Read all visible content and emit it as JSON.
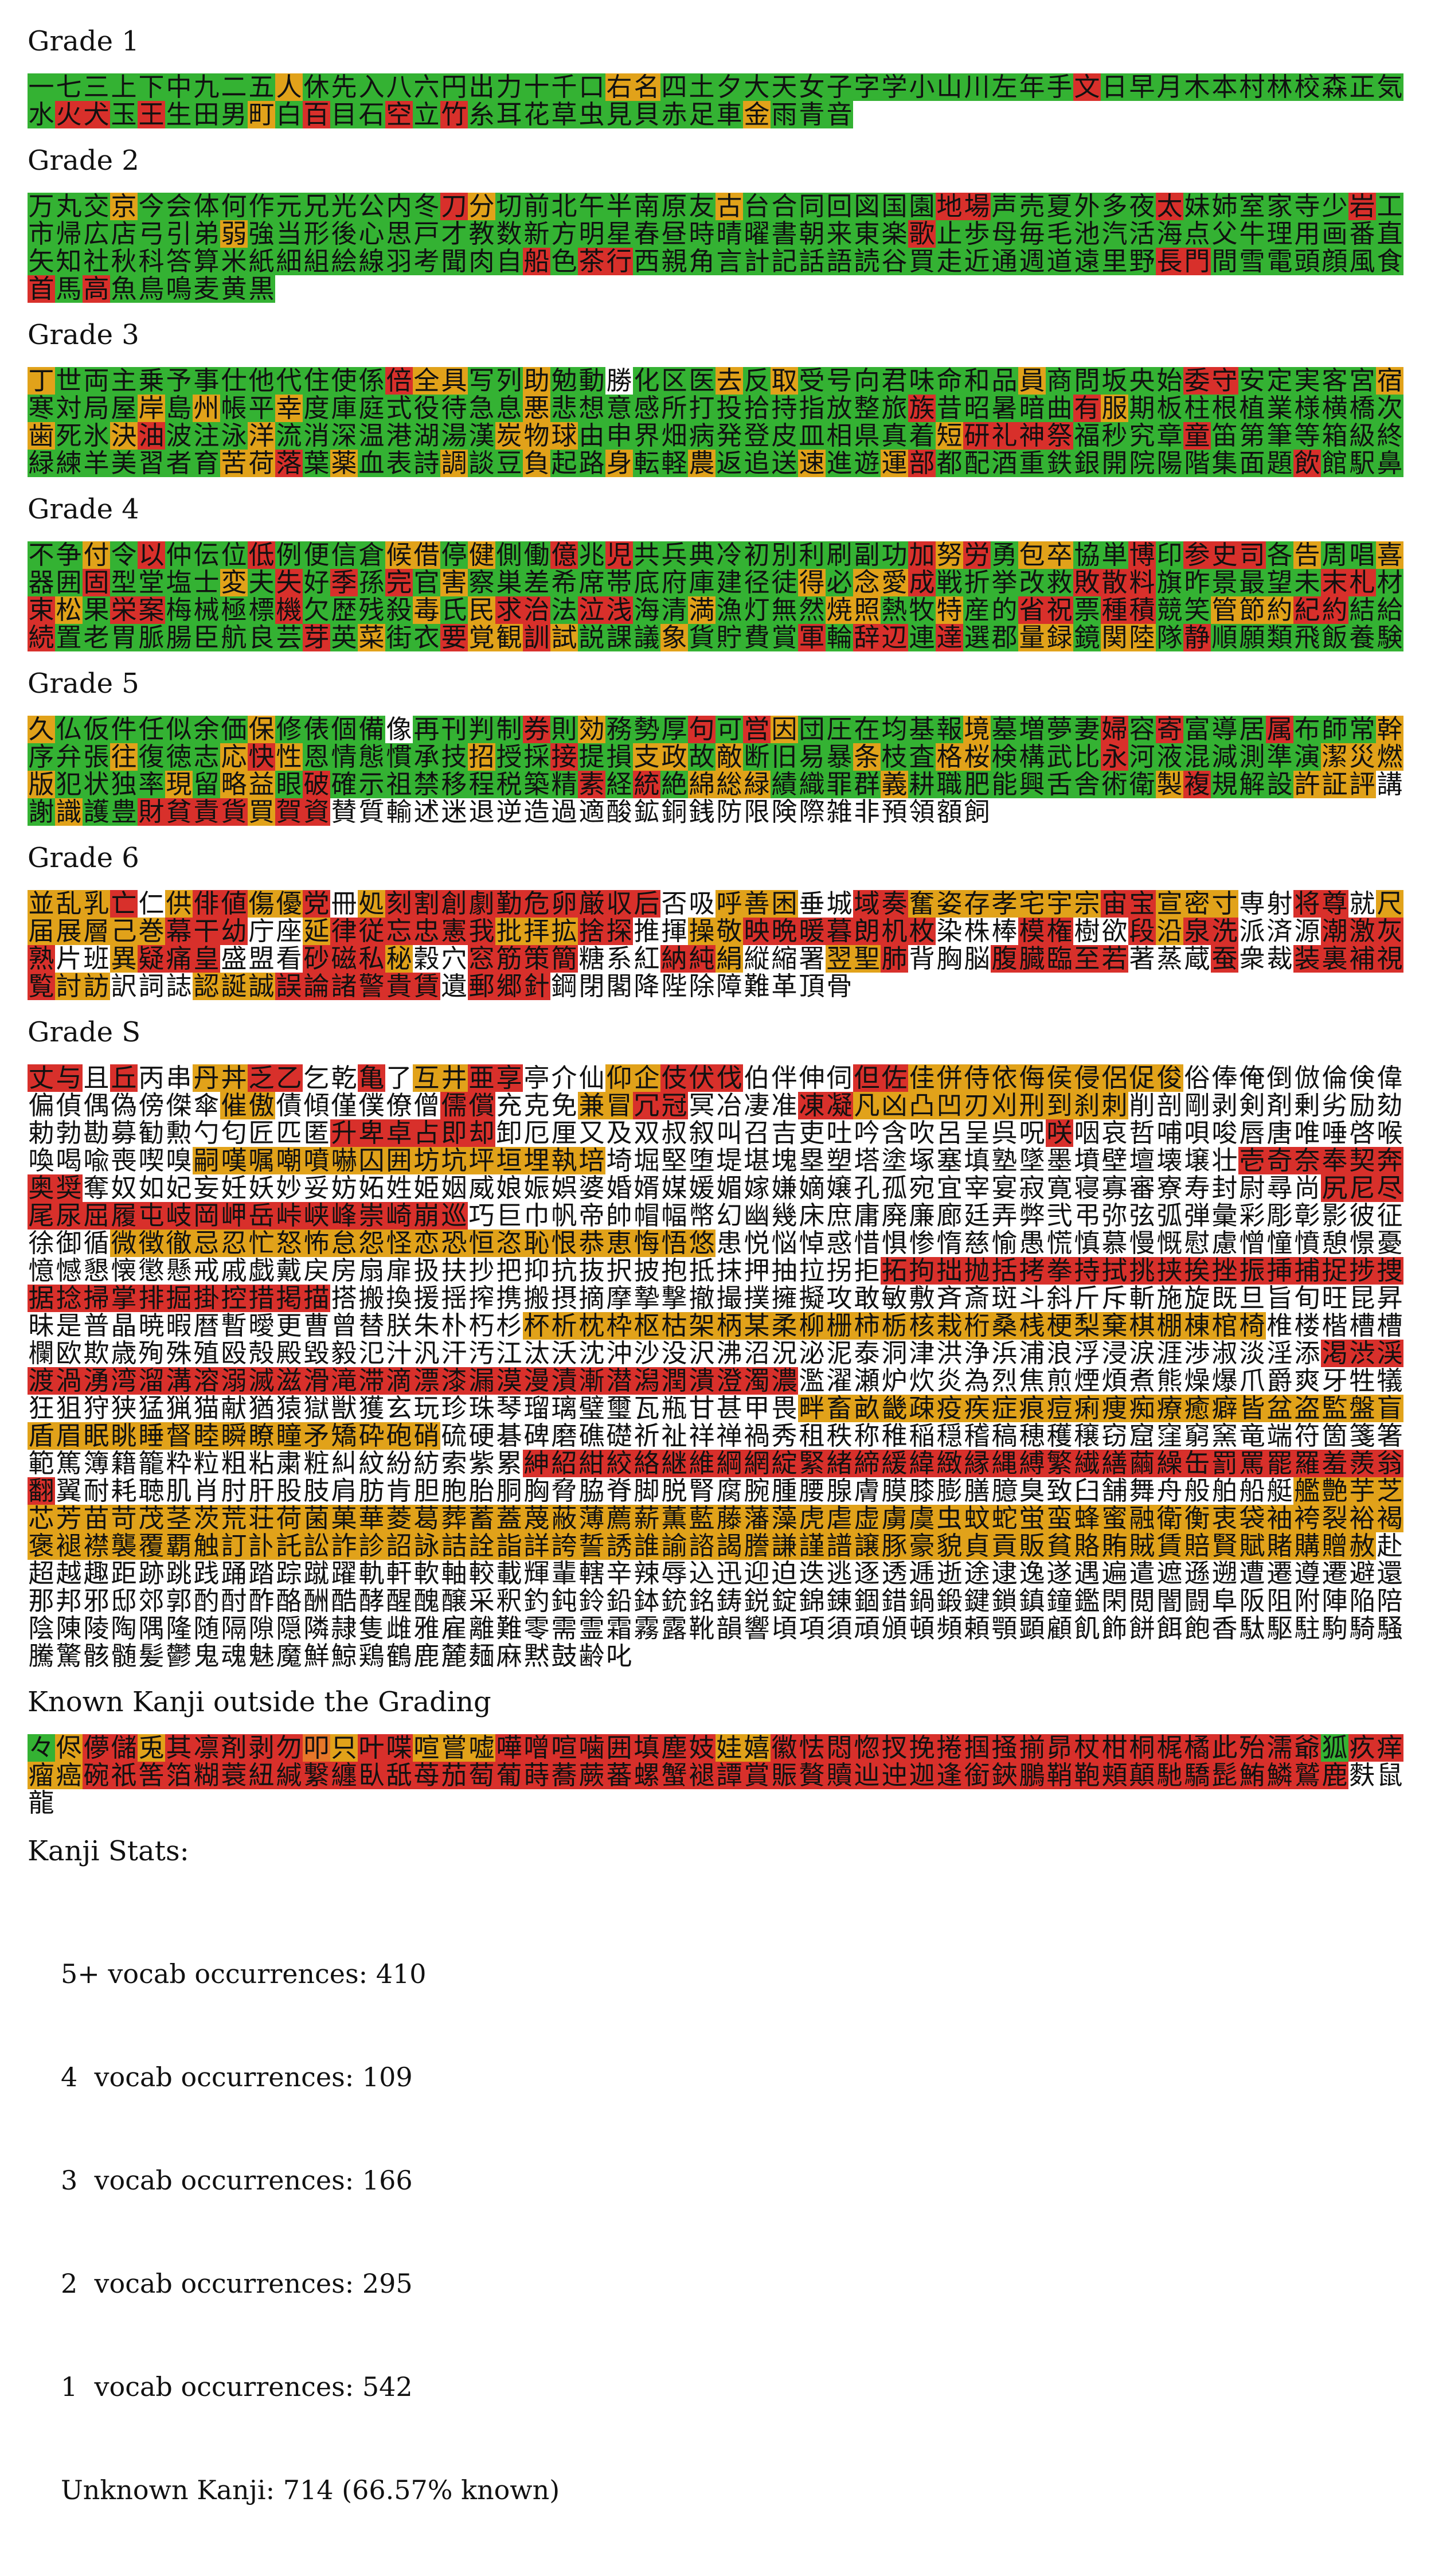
{
  "colors": {
    "g": "#34b233",
    "y": "#e1a21a",
    "r": "#d8302b",
    "o": "#e7772a",
    "n": "transparent"
  },
  "sections": [
    {
      "heading": "Grade 1",
      "kanji": "一七三上下中九二五人休先入八六円出力十千口右名四土夕大天女子字学小山川左年手文日早月木本村林校森正気水火犬玉王生田男町白百目石空立竹糸耳花草虫見貝赤足車金雨青音",
      "colors": "gggggggggygggggggggggyygggggggggggggggrggggggggggggrrgrgggygrggrgrggggggggggygggggg"
    },
    {
      "heading": "Grade 2",
      "kanji": "万丸交京今会体何作元兄光公内冬刀分切前北午半南原友古台合同回図国園地場声売夏外多夜太妹姉室家寺少岩工市帰広店弓引弟弱強当形後心思戸才教数新方明星春昼時晴曜書朝来東楽歌止歩母毎毛池汽活海点父牛理用画番直矢知社秋科答算米紙細組絵線羽考聞肉自船色茶行西親角言計記話語読谷買走近通週道遠里野長門間雪電頭顔風食首馬高魚鳥鳴麦黄黒",
      "colors": "gggygggggggggggryggggggggygggggggrrggggggrggggggrggggggggyggggggggggggggggggggggggrgggggggggggggggggggggggggggggggggggrgrrgggggggggggggggggggrrgggggggrgrggggggggggyggrrgggggggggggggyrg"
    },
    {
      "heading": "Grade 3",
      "kanji": "丁世両主乗予事仕他代住使係倍全具写列助勉動勝化区医去反取受号向君味命和品員商問坂央始委守安定実客宮宿寒対局屋岸島州帳平幸度庫庭式役待急息悪悲想意感所打投拾持指放整旅族昔昭暑暗曲有服期板柱根植業様横橋次歯死氷決油波注泳洋流消深温港湖湯漢炭物球由申界畑病発登皮皿相県真着短研礼神祭福秒究章童笛第筆等箱級終緑練羊美習者育苦荷落葉薬血表詩調談豆負起路身転軽農返追送速進遊運部都配酒重鉄銀開院陽階集面題飲館駅鼻",
      "colors": "yggggggggggggryyggyggngggygyggggggggygggggrrgggggyggggygyggyggggggggygggggggggggggrgggggryggggggggggyggyrgggyggggggggyyygggggggggggggyrrrrggggrggggggggggggggyyrgygggyggyggyggygggyggyrgggggggggggggrgggggggggggggggr"
    },
    {
      "heading": "Grade 4",
      "kanji": "不争付令以仲伝位低例便信倉候借停健側働億兆児共兵典冷初別利刷副功加努労勇包卒協単博印参史司各告周唱喜器囲固型堂塩士変夫失好季孫完官害察巣差希席帯底府庫建径徒得必念愛成戦折挙改救敗散料旗昨景最望未末札材束松果栄案梅械極標機欠歴残殺毒氏民求治法泣浅海清満漁灯無然焼照熱牧特産的省祝票種積競笑管節約紀約結給続置老胃脈腸臣航良芸芽英菜街衣要覚観訓試説課議象貨貯費賞軍輪辞辺連達選郡量録鏡関陸隊静順願類飛飯養験",
      "colors": "ggygrgggrggggyygyggrgrggggggggggryrgyyggrgrrrgyggyggrggggygrgrgrgyggggggggggggygyyrgggggrrrggggggrrgrygrrggggrggggygyrrgrrggyggggyyggyggrrgrrggyyyrrggrgggggggggrgyggryyrygggyggggrgrrgrggyygyygrgggggggggggggg"
    },
    {
      "heading": "Grade 5",
      "kanji": "久仏仮件任似余価保修俵個備像再刊判制券則効務勢厚句可営因団圧在均基報境墓増夢妻婦容寄富導居属布師常幹序弁張往復徳志応快性恩情態慣承技招授採接提損支政故敵断旧易暴条枝査格桜検構武比永河液混減測準演潔災燃版犯状独率現留略益眼破確示祖禁移程税築精素経統絶綿総緑績織罪群義耕職肥能興舌舎術衛製複規解設許証評講謝識護豊財貧責貨買賀資賛質輸述迷退逆造過適酸鉱銅銭防限険際雑非預領額飼",
      "colors": "ygggggggyggggnggggrgygggrgryggggggyggggrgrgggrgggygggygggyryggggggyggrggyygyggggyggyyggggrgggggggyyyyggggygyygrgggggggggrgrgyyyggggygggggggggyrgggyyyngyggrrrryrr"
    },
    {
      "heading": "Grade 6",
      "kanji": "並乱乳亡仁供俳値傷優党冊処刻割創劇勤危卵厳収后否吸呼善困垂城域奏奮姿存孝宅宇宗宙宝宣密寸専射将尊就尺届展層己巻幕干幼庁座延律従忘忠憲我批拝拡捨探推揮操敬映晩暖暮朗机枚染株棒模権樹欲段沿泉洗派済源潮激灰熟片班異疑痛皇盛盟看砂磁私秘穀穴窓筋策簡糖系紅納純絹縦縮署翌聖肺背胸脳腹臓臨至若著蒸蔵蚕衆裁装裏補視覧討訪訳詞誌認誕誠誤論諸警貴賃遺郵郷針鋼閉閣降陛除障難革頂骨",
      "colors": "yyyrnyrryyrnyrrrrrrrrrrnnyyynnrryyyyyyyrryyynnrrnyyyyyyrrrnnyrrrrrryyyrrnnyyrrrrrrrnnnrrnnryrrnnnrrrrnnyrrrnnnrrrynnrrrrnnnrrynnnyyrnnnrrrrrnnnrnnrrrrryynnnyyyrrrrrrnrrr"
    },
    {
      "heading": "Grade S",
      "kanji": "丈与且丘丙串丹丼乏乙乞乾亀了互井亜享亭介仙仰企伎伏伐伯伴伸伺但佐佳併侍依侮侯侵侶促俊俗俸俺倒倣倫倹偉偏偵偶偽傍傑傘催傲債傾僅僕僚僧儒償充克免兼冒冗冠冥冶凄准凍凝凡凶凸凹刃刈刑到刹刺削剖剛剥剣剤剰劣励劾勅勃勘募勧勲勺匂匠匹匿升卑卓占即却卸厄厘又及双叔叙叫召吉吏吐吟含吹呂呈呉呪咲咽哀哲哺唄唆唇唐唯唾啓喉喚喝喩喪喫嗅嗣嘆嘱嘲噴嚇囚囲坊坑坪垣埋執培埼堀堅堕堤堪塊塁塑塔塗塚塞填塾墜墨墳壁壇壊壌壮壱奇奈奉契奔奥奨奪奴如妃妄妊妖妙妥妨妬姓姫姻威娘娠娯婆婚婿媒媛媚嫁嫌嫡嬢孔孤宛宜宰宴寂寛寝寡審寮寿封尉尋尚尻尼尽尾尿屈履屯岐岡岬岳峠峡峰崇崎崩巡巧巨巾帆帝帥帽幅幣幻幽幾床庶庸廃廉廊廷弄弊弐弔弥弦弧弾彙彩彫彰影彼征徐御循微徴徹忌忍忙怒怖怠怨怪恋恐恒恣恥恨恭恵悔悟悠患悦悩悼惑惜惧惨惰慈愉愚慌慎慕慢慨慰慮憎憧憤憩憬憂憶憾懇懐懲懸戒戚戯戴戻房扇扉扱扶抄把抑抗抜択披抱抵抹押抽拉拐拒拓拘拙抛括拷拳持拭挑挟挨挫振挿捕捉捗捜据捻掃掌排掘掛控措掲描搭搬換援揺搾携搬摂摘摩摯撃撤撮撲擁擬攻敢敏敷斉斎斑斗斜斤斥斬施旋既旦旨旬旺昆昇昧是普晶暁暇暦暫曖更曹曾替朕朱朴朽杉杯析枕枠枢枯架柄某柔柳栅柿栃核栽桁桑桟梗梨棄棋棚棟棺椅椎楼楷槽槽欄欧欺歳殉殊殖殴殻殿毀毅氾汁汎汗汚江汰沃沈沖沙没沢沸沼況泌泥泰洞津洪浄浜浦浪浮浸涙涯渉淑淡淫添渇渋渓渡渦湧湾溜溝溶溺滅滋滑滝滞滴漂漆漏漠漫漬漸潜潟潤潰澄濁濃濫濯瀬炉炊炎為烈焦煎煙煩煮熊燥爆爪爵爽牙牲犠狂狙狩狭猛猟猫献猶猿獄獣獲玄玩珍珠琴瑠璃璧璽瓦瓶甘甚甲畏畔畜畝畿疎疫疾症痕痘痢痩痴療癒癖皆盆盗監盤盲盾眉眠眺睡督睦瞬瞭瞳矛矯砕砲硝硫硬碁碑磨礁礎祈祉祥禅禍秀租秩称稚稲穏稽稿穂穫穣窃窟窪窮窯竜端符箇箋箸範篤簿籍籠粋粒粗粘粛粧糾紋紛紡索紫累紳紹紺絞絡継維綱網綻緊緒締緩緯緻縁縄縛繁繊繕繭繰缶罰罵罷羅羞羨翁翻翼耐耗聴肌肖肘肝股肢肩肪肯胆胞胎胴胸脅脇脊脚脱腎腐腕腫腰腺膚膜膝膨膳臆臭致臼舗舞舟般舶船艇艦艶芋芝芯芳苗苛茂茎茨荒荘荷菌菓華菱葛葬蓄蓋蔑蔽薄薦薪薫藍藤藩藻虎虐虚虜虞虫蚊蛇蛍蛮蜂蜜融衛衡衷袋袖袴裂裕褐褒褪襟襲覆覇触訂訃託訟詐診詔詠詰詮詣詳誇誓誘誰諭諮謁謄謙謹譜譲豚豪貌貞貢販貧賂賄賊賃賠賢賦賭購贈赦赴超越趣距跡跳践踊踏踪蹴躍軌軒軟軸較載輝輩轄辛辣辱込迅迎迫迭逃逐透逓逝途逮逸遂遇遍遣遮遜遡遭遷遵遷避還那邦邪邸郊郭酌酎酢酪酬酷酵醒醜醸采釈釣鈍鈴鉛鉢銃銘鋳鋭錠錦錬錮錯鍋鍛鍵鎖鎮鐘鑑閑閲闇闘阜阪阻附陣陥陪陰陳陵陶隅隆随隔隙隠隣隷隻雌雅雇離難零需霊霜霧露靴韻響頃項須頑頒頓頻頼顎顕顧飢飾餅餌飽香駄駆駐駒騎騒騰驚骸髄髪鬱鬼魂魅魔鮮鯨鶏鶴鹿麓麺麻黙鼓齢叱",
      "colors": "rrnrnnyyrrnnrnyyrrnnnyyrrrnnnnrryyyyyyyyyynnnnnnnnnnnnnnnyynnnnnnrrnnnyyrrnnnnrryyyyyyyyyynnnnnnnnnnnnnnnnnnnnnrrrrrrnnnnnnnnnnnnnnnnnnnnrnnnnnnnnnnnnnnnnnnyyyyyyyyyyyyyyynnnnnnnnnnnnnnnnnnnnnnnrrrrrrrrnnnnnnnnnnnnnnnnnnnnnnnnnnnnnnnnnnnnnnnnnnnnnrrrrrrrrrrrrrrrrrrrnnnnnnnnnnnnnnnnnnnnnnnnnnnnnnnnnnnnnyyyyyyyyyyyyyyyyyyyyyynnnnnnnnnnnnnnnnnnnnnnnnnnnnnnnnnnnnnnnnnnnnnnnnnnnnnnnnrrrrrrrrrrrrrrrrrrrrrrrrrrrrrrnnnnnnnnnnnnnnnnnnnnnnnnnnnnnnnnnnnnnnnnnnnnnnnnnnnnnnnnnyyyyyyyyyyyyyyyyyyyyyyyyyyynnnnnnnnnnnnnnnnnnnnnnnnnnnnnnnnnnnnnnnnnnnnnnnnnnnnrrrrrrrrrrrrrrrrrrrrrrrrrrrrrrrnnnnnnnnnnnnnnnnnnnnnnnnnnnnnnnnnnnnnnnnnnnnnnnnnnyyyyyyyyyyyyyyyyyyyyyyyyyyyyyyyyyyyyynnnnnnnnnnnnnnnnnnnnnnnnnnnnnnnnnnnnnnnnnnnnnnnnnnnnnrrrrrrrrrrrrrrrrrrrrrrrrrrrrrrrrrnnnnnnnnnnnnnnnnnnnnnnnnnnnnnnnnnnnnnnnnnnnnnyyyyyyyyyyyyyyyyyyyyyyyyyyyyyyyyyyyyyyyyyyyyyyyyyyyyyyyyyyyyyyyyyyyyyyyyyyyyyyyyyyyyyyyyyyyyyyyyyyyyyyy"
    },
    {
      "heading": "Known Kanji outside the Grading",
      "kanji": "々侭儚儲兎其凛剤剥勿叩只叶喋喧嘗嘘嘩噌喧噛囲填塵妓娃嬉徽怯悶惚扠挽捲掴掻揃昴杖柑桐梶橘此殆濡爺狐疚痒瘤癌碗祇筈箔糊蓑紐緘繋纏臥舐苺茄萄葡蒔蕎蕨蕃螺蟹褪譚賞賑贅贖辿迚迦逢銜鋏鵬鞘鞄頬顛馳驕髭鮪鱗鷲鹿麩鼠龍",
      "colors": "gyrryrrrrroyrryyyrrrrrrrryyrrrrrrrrrrrrrrrrrrrrgrryyrrrrrrrrrrrrrrrrrrrrrrrrrrrrrrrrrrrrrrrrrrrrrr"
    }
  ],
  "stats": {
    "title": "Kanji Stats:",
    "lines": [
      "5+ vocab occurrences: 410",
      "4  vocab occurrences: 109",
      "3  vocab occurrences: 166",
      "2  vocab occurrences: 295",
      "1  vocab occurrences: 542",
      "Unknown Kanji: 714 (66.57% known)"
    ]
  }
}
